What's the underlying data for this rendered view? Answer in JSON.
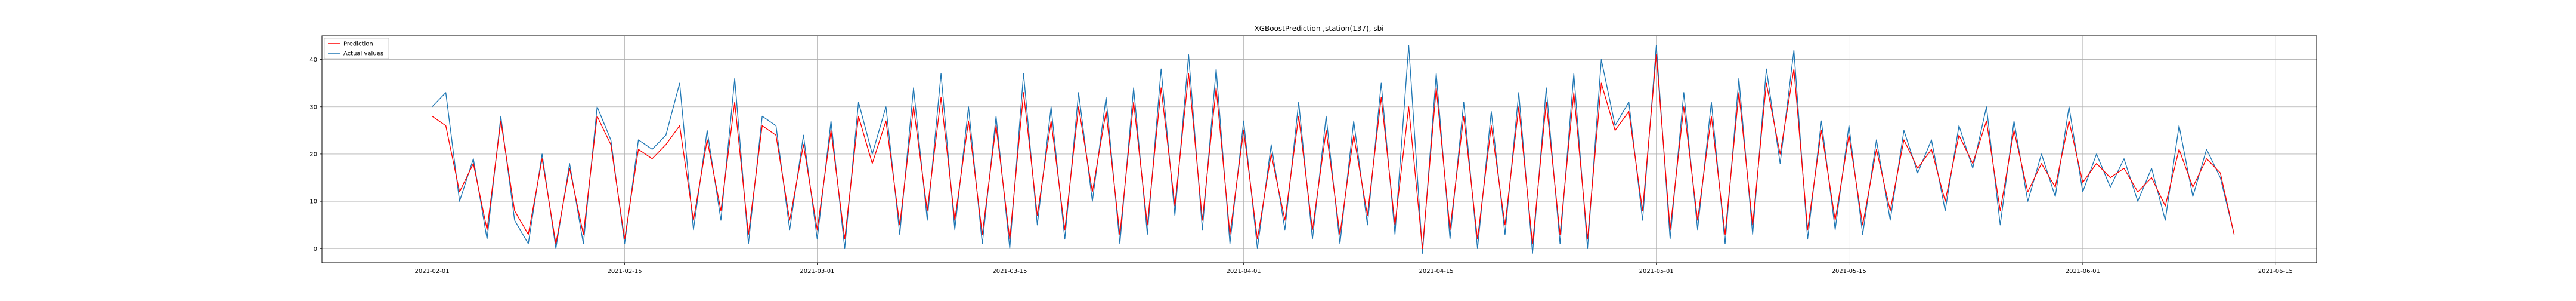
{
  "chart_data": {
    "type": "line",
    "title": "XGBoostPrediction ,station(137), sbi",
    "xlabel": "",
    "ylabel": "",
    "grid": true,
    "legend_position": "top-left",
    "x_range": [
      "2021-01-24",
      "2021-06-18"
    ],
    "ylim": [
      -3,
      45
    ],
    "x_ticks": [
      "2021-02-01",
      "2021-02-15",
      "2021-03-01",
      "2021-03-15",
      "2021-04-01",
      "2021-04-15",
      "2021-05-01",
      "2021-05-15",
      "2021-06-01",
      "2021-06-15"
    ],
    "y_ticks": [
      0,
      10,
      20,
      30,
      40
    ],
    "series": [
      {
        "name": "Prediction",
        "color": "#ff0000",
        "points": [
          [
            "2021-02-01",
            28
          ],
          [
            "2021-02-02",
            26
          ],
          [
            "2021-02-03",
            12
          ],
          [
            "2021-02-04",
            18
          ],
          [
            "2021-02-05",
            4
          ],
          [
            "2021-02-06",
            27
          ],
          [
            "2021-02-07",
            8
          ],
          [
            "2021-02-08",
            3
          ],
          [
            "2021-02-09",
            19
          ],
          [
            "2021-02-10",
            1
          ],
          [
            "2021-02-11",
            17
          ],
          [
            "2021-02-12",
            3
          ],
          [
            "2021-02-13",
            28
          ],
          [
            "2021-02-14",
            22
          ],
          [
            "2021-02-15",
            2
          ],
          [
            "2021-02-16",
            21
          ],
          [
            "2021-02-17",
            19
          ],
          [
            "2021-02-18",
            22
          ],
          [
            "2021-02-19",
            26
          ],
          [
            "2021-02-20",
            6
          ],
          [
            "2021-02-21",
            23
          ],
          [
            "2021-02-22",
            8
          ],
          [
            "2021-02-23",
            31
          ],
          [
            "2021-02-24",
            3
          ],
          [
            "2021-02-25",
            26
          ],
          [
            "2021-02-26",
            24
          ],
          [
            "2021-02-27",
            6
          ],
          [
            "2021-02-28",
            22
          ],
          [
            "2021-03-01",
            4
          ],
          [
            "2021-03-02",
            25
          ],
          [
            "2021-03-03",
            2
          ],
          [
            "2021-03-04",
            28
          ],
          [
            "2021-03-05",
            18
          ],
          [
            "2021-03-06",
            27
          ],
          [
            "2021-03-07",
            5
          ],
          [
            "2021-03-08",
            30
          ],
          [
            "2021-03-09",
            8
          ],
          [
            "2021-03-10",
            32
          ],
          [
            "2021-03-11",
            6
          ],
          [
            "2021-03-12",
            27
          ],
          [
            "2021-03-13",
            3
          ],
          [
            "2021-03-14",
            26
          ],
          [
            "2021-03-15",
            2
          ],
          [
            "2021-03-16",
            33
          ],
          [
            "2021-03-17",
            7
          ],
          [
            "2021-03-18",
            27
          ],
          [
            "2021-03-19",
            4
          ],
          [
            "2021-03-20",
            30
          ],
          [
            "2021-03-21",
            12
          ],
          [
            "2021-03-22",
            29
          ],
          [
            "2021-03-23",
            3
          ],
          [
            "2021-03-24",
            31
          ],
          [
            "2021-03-25",
            5
          ],
          [
            "2021-03-26",
            34
          ],
          [
            "2021-03-27",
            9
          ],
          [
            "2021-03-28",
            37
          ],
          [
            "2021-03-29",
            6
          ],
          [
            "2021-03-30",
            34
          ],
          [
            "2021-03-31",
            3
          ],
          [
            "2021-04-01",
            25
          ],
          [
            "2021-04-02",
            2
          ],
          [
            "2021-04-03",
            20
          ],
          [
            "2021-04-04",
            6
          ],
          [
            "2021-04-05",
            28
          ],
          [
            "2021-04-06",
            4
          ],
          [
            "2021-04-07",
            25
          ],
          [
            "2021-04-08",
            3
          ],
          [
            "2021-04-09",
            24
          ],
          [
            "2021-04-10",
            7
          ],
          [
            "2021-04-11",
            32
          ],
          [
            "2021-04-12",
            5
          ],
          [
            "2021-04-13",
            30
          ],
          [
            "2021-04-14",
            0
          ],
          [
            "2021-04-15",
            34
          ],
          [
            "2021-04-16",
            4
          ],
          [
            "2021-04-17",
            28
          ],
          [
            "2021-04-18",
            2
          ],
          [
            "2021-04-19",
            26
          ],
          [
            "2021-04-20",
            5
          ],
          [
            "2021-04-21",
            30
          ],
          [
            "2021-04-22",
            1
          ],
          [
            "2021-04-23",
            31
          ],
          [
            "2021-04-24",
            3
          ],
          [
            "2021-04-25",
            33
          ],
          [
            "2021-04-26",
            2
          ],
          [
            "2021-04-27",
            35
          ],
          [
            "2021-04-28",
            25
          ],
          [
            "2021-04-29",
            29
          ],
          [
            "2021-04-30",
            8
          ],
          [
            "2021-05-01",
            41
          ],
          [
            "2021-05-02",
            4
          ],
          [
            "2021-05-03",
            30
          ],
          [
            "2021-05-04",
            6
          ],
          [
            "2021-05-05",
            28
          ],
          [
            "2021-05-06",
            3
          ],
          [
            "2021-05-07",
            33
          ],
          [
            "2021-05-08",
            5
          ],
          [
            "2021-05-09",
            35
          ],
          [
            "2021-05-10",
            20
          ],
          [
            "2021-05-11",
            38
          ],
          [
            "2021-05-12",
            4
          ],
          [
            "2021-05-13",
            25
          ],
          [
            "2021-05-14",
            6
          ],
          [
            "2021-05-15",
            24
          ],
          [
            "2021-05-16",
            5
          ],
          [
            "2021-05-17",
            21
          ],
          [
            "2021-05-18",
            8
          ],
          [
            "2021-05-19",
            23
          ],
          [
            "2021-05-20",
            17
          ],
          [
            "2021-05-21",
            21
          ],
          [
            "2021-05-22",
            10
          ],
          [
            "2021-05-23",
            24
          ],
          [
            "2021-05-24",
            18
          ],
          [
            "2021-05-25",
            27
          ],
          [
            "2021-05-26",
            8
          ],
          [
            "2021-05-27",
            25
          ],
          [
            "2021-05-28",
            12
          ],
          [
            "2021-05-29",
            18
          ],
          [
            "2021-05-30",
            13
          ],
          [
            "2021-05-31",
            27
          ],
          [
            "2021-06-01",
            14
          ],
          [
            "2021-06-02",
            18
          ],
          [
            "2021-06-03",
            15
          ],
          [
            "2021-06-04",
            17
          ],
          [
            "2021-06-05",
            12
          ],
          [
            "2021-06-06",
            15
          ],
          [
            "2021-06-07",
            9
          ],
          [
            "2021-06-08",
            21
          ],
          [
            "2021-06-09",
            13
          ],
          [
            "2021-06-10",
            19
          ],
          [
            "2021-06-11",
            16
          ],
          [
            "2021-06-12",
            3
          ]
        ]
      },
      {
        "name": "Actual values",
        "color": "#1f77b4",
        "points": [
          [
            "2021-02-01",
            30
          ],
          [
            "2021-02-02",
            33
          ],
          [
            "2021-02-03",
            10
          ],
          [
            "2021-02-04",
            19
          ],
          [
            "2021-02-05",
            2
          ],
          [
            "2021-02-06",
            28
          ],
          [
            "2021-02-07",
            6
          ],
          [
            "2021-02-08",
            1
          ],
          [
            "2021-02-09",
            20
          ],
          [
            "2021-02-10",
            0
          ],
          [
            "2021-02-11",
            18
          ],
          [
            "2021-02-12",
            1
          ],
          [
            "2021-02-13",
            30
          ],
          [
            "2021-02-14",
            23
          ],
          [
            "2021-02-15",
            1
          ],
          [
            "2021-02-16",
            23
          ],
          [
            "2021-02-17",
            21
          ],
          [
            "2021-02-18",
            24
          ],
          [
            "2021-02-19",
            35
          ],
          [
            "2021-02-20",
            4
          ],
          [
            "2021-02-21",
            25
          ],
          [
            "2021-02-22",
            6
          ],
          [
            "2021-02-23",
            36
          ],
          [
            "2021-02-24",
            1
          ],
          [
            "2021-02-25",
            28
          ],
          [
            "2021-02-26",
            26
          ],
          [
            "2021-02-27",
            4
          ],
          [
            "2021-02-28",
            24
          ],
          [
            "2021-03-01",
            2
          ],
          [
            "2021-03-02",
            27
          ],
          [
            "2021-03-03",
            0
          ],
          [
            "2021-03-04",
            31
          ],
          [
            "2021-03-05",
            20
          ],
          [
            "2021-03-06",
            30
          ],
          [
            "2021-03-07",
            3
          ],
          [
            "2021-03-08",
            34
          ],
          [
            "2021-03-09",
            6
          ],
          [
            "2021-03-10",
            37
          ],
          [
            "2021-03-11",
            4
          ],
          [
            "2021-03-12",
            30
          ],
          [
            "2021-03-13",
            1
          ],
          [
            "2021-03-14",
            28
          ],
          [
            "2021-03-15",
            0
          ],
          [
            "2021-03-16",
            37
          ],
          [
            "2021-03-17",
            5
          ],
          [
            "2021-03-18",
            30
          ],
          [
            "2021-03-19",
            2
          ],
          [
            "2021-03-20",
            33
          ],
          [
            "2021-03-21",
            10
          ],
          [
            "2021-03-22",
            32
          ],
          [
            "2021-03-23",
            1
          ],
          [
            "2021-03-24",
            34
          ],
          [
            "2021-03-25",
            3
          ],
          [
            "2021-03-26",
            38
          ],
          [
            "2021-03-27",
            7
          ],
          [
            "2021-03-28",
            41
          ],
          [
            "2021-03-29",
            4
          ],
          [
            "2021-03-30",
            38
          ],
          [
            "2021-03-31",
            1
          ],
          [
            "2021-04-01",
            27
          ],
          [
            "2021-04-02",
            0
          ],
          [
            "2021-04-03",
            22
          ],
          [
            "2021-04-04",
            4
          ],
          [
            "2021-04-05",
            31
          ],
          [
            "2021-04-06",
            2
          ],
          [
            "2021-04-07",
            28
          ],
          [
            "2021-04-08",
            1
          ],
          [
            "2021-04-09",
            27
          ],
          [
            "2021-04-10",
            5
          ],
          [
            "2021-04-11",
            35
          ],
          [
            "2021-04-12",
            3
          ],
          [
            "2021-04-13",
            43
          ],
          [
            "2021-04-14",
            -1
          ],
          [
            "2021-04-15",
            37
          ],
          [
            "2021-04-16",
            2
          ],
          [
            "2021-04-17",
            31
          ],
          [
            "2021-04-18",
            0
          ],
          [
            "2021-04-19",
            29
          ],
          [
            "2021-04-20",
            3
          ],
          [
            "2021-04-21",
            33
          ],
          [
            "2021-04-22",
            -1
          ],
          [
            "2021-04-23",
            34
          ],
          [
            "2021-04-24",
            1
          ],
          [
            "2021-04-25",
            37
          ],
          [
            "2021-04-26",
            0
          ],
          [
            "2021-04-27",
            40
          ],
          [
            "2021-04-28",
            26
          ],
          [
            "2021-04-29",
            31
          ],
          [
            "2021-04-30",
            6
          ],
          [
            "2021-05-01",
            43
          ],
          [
            "2021-05-02",
            2
          ],
          [
            "2021-05-03",
            33
          ],
          [
            "2021-05-04",
            4
          ],
          [
            "2021-05-05",
            31
          ],
          [
            "2021-05-06",
            1
          ],
          [
            "2021-05-07",
            36
          ],
          [
            "2021-05-08",
            3
          ],
          [
            "2021-05-09",
            38
          ],
          [
            "2021-05-10",
            18
          ],
          [
            "2021-05-11",
            42
          ],
          [
            "2021-05-12",
            2
          ],
          [
            "2021-05-13",
            27
          ],
          [
            "2021-05-14",
            4
          ],
          [
            "2021-05-15",
            26
          ],
          [
            "2021-05-16",
            3
          ],
          [
            "2021-05-17",
            23
          ],
          [
            "2021-05-18",
            6
          ],
          [
            "2021-05-19",
            25
          ],
          [
            "2021-05-20",
            16
          ],
          [
            "2021-05-21",
            23
          ],
          [
            "2021-05-22",
            8
          ],
          [
            "2021-05-23",
            26
          ],
          [
            "2021-05-24",
            17
          ],
          [
            "2021-05-25",
            30
          ],
          [
            "2021-05-26",
            5
          ],
          [
            "2021-05-27",
            27
          ],
          [
            "2021-05-28",
            10
          ],
          [
            "2021-05-29",
            20
          ],
          [
            "2021-05-30",
            11
          ],
          [
            "2021-05-31",
            30
          ],
          [
            "2021-06-01",
            12
          ],
          [
            "2021-06-02",
            20
          ],
          [
            "2021-06-03",
            13
          ],
          [
            "2021-06-04",
            19
          ],
          [
            "2021-06-05",
            10
          ],
          [
            "2021-06-06",
            17
          ],
          [
            "2021-06-07",
            6
          ],
          [
            "2021-06-08",
            26
          ],
          [
            "2021-06-09",
            11
          ],
          [
            "2021-06-10",
            21
          ],
          [
            "2021-06-11",
            15
          ],
          [
            "2021-06-12",
            3
          ]
        ]
      }
    ]
  }
}
